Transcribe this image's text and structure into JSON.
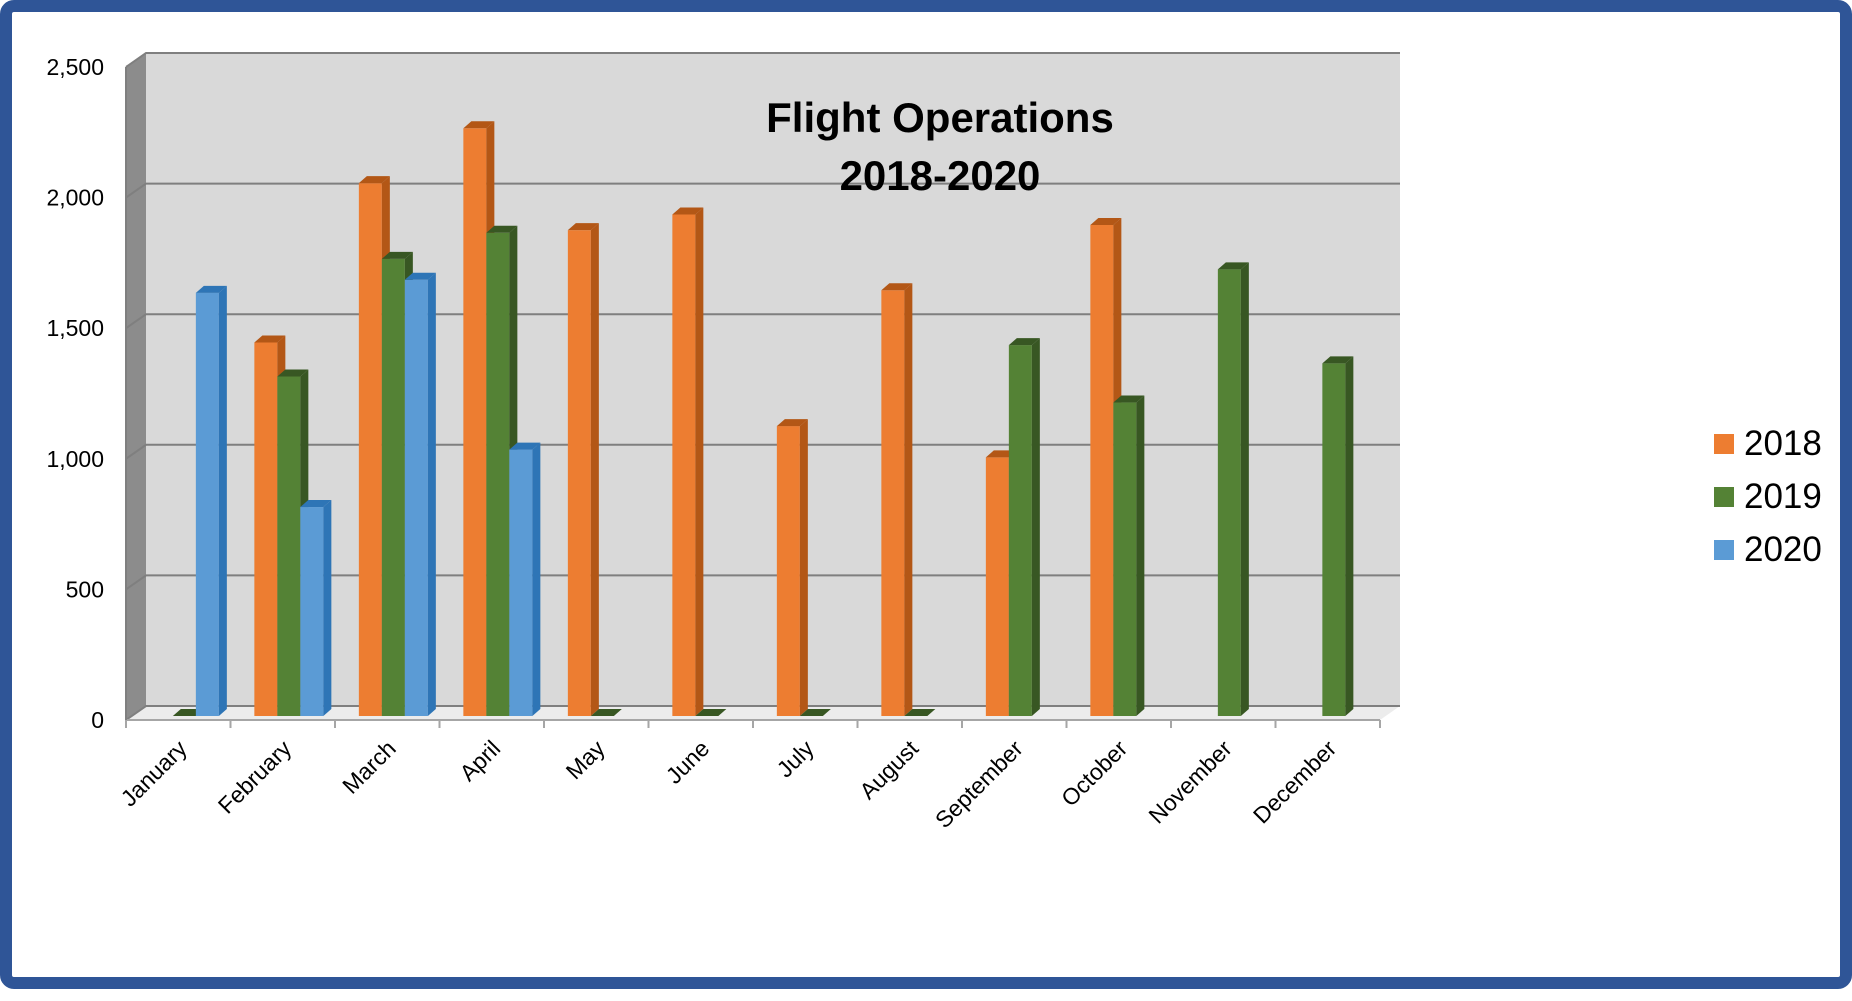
{
  "chart_data": {
    "type": "bar",
    "title_lines": [
      "Flight Operations",
      "2018-2020"
    ],
    "categories": [
      "January",
      "February",
      "March",
      "April",
      "May",
      "June",
      "July",
      "August",
      "September",
      "October",
      "November",
      "December"
    ],
    "series": [
      {
        "name": "2018",
        "color": "#ed7d31",
        "side_color": "#b35716",
        "values": [
          null,
          1430,
          2040,
          2250,
          1860,
          1920,
          1110,
          1630,
          990,
          1880,
          null,
          null
        ]
      },
      {
        "name": "2019",
        "color": "#548235",
        "side_color": "#385723",
        "values": [
          0,
          1300,
          1750,
          1850,
          0,
          0,
          0,
          0,
          1420,
          1200,
          1710,
          1350
        ]
      },
      {
        "name": "2020",
        "color": "#5b9bd5",
        "side_color": "#2e75b6",
        "values": [
          1620,
          800,
          1670,
          1020,
          null,
          null,
          null,
          null,
          null,
          null,
          null,
          null
        ]
      }
    ],
    "y_ticks": [
      "0",
      "500",
      "1,000",
      "1,500",
      "2,000",
      "2,500"
    ],
    "ylim": [
      0,
      2500
    ],
    "grid": true,
    "legend_position": "right",
    "plot_background": "#d9d9d9",
    "frame_color": "#2f5597"
  }
}
